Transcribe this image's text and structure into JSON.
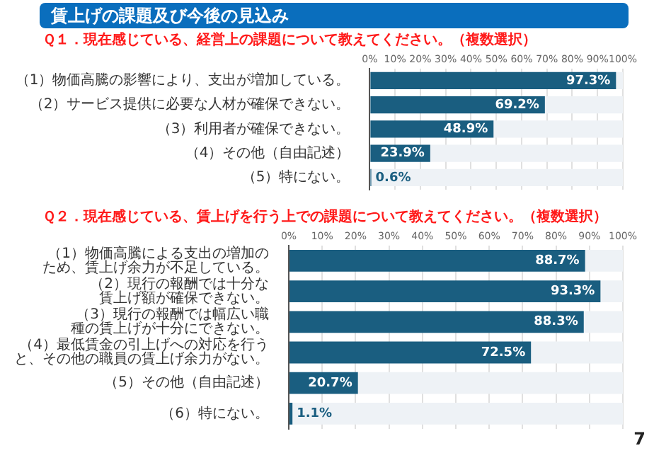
{
  "chart_data": [
    {
      "type": "bar",
      "orientation": "horizontal",
      "stacked": true,
      "title": "賃上げの課題及び今後の見込み",
      "subtitle": "Ｑ１．現在感じている、経営上の課題について教えてください。（複数選択）",
      "categories": [
        "（1）物価高騰の影響により、支出が増加している。",
        "（2）サービス提供に必要な人材が確保できない。",
        "（3）利用者が確保できない。",
        "（4）その他（自由記述）",
        "（5）特にない。"
      ],
      "series": [
        {
          "color": "#1a5e80",
          "values": [
            97.3,
            69.2,
            48.9,
            23.9,
            0.6
          ],
          "value_labels": [
            "97.3%",
            "69.2%",
            "48.9%",
            "23.9%",
            "0.6%"
          ]
        },
        {
          "color": "#eef2f6",
          "values": [
            2.7,
            30.8,
            51.1,
            76.1,
            99.4
          ]
        }
      ],
      "xlim": [
        0,
        100
      ],
      "xticks": [
        {
          "value": 0,
          "label": "0%"
        },
        {
          "value": 10,
          "label": "10%"
        },
        {
          "value": 20,
          "label": "20%"
        },
        {
          "value": 30,
          "label": "30%"
        },
        {
          "value": 40,
          "label": "40%"
        },
        {
          "value": 50,
          "label": "50%"
        },
        {
          "value": 60,
          "label": "60%"
        },
        {
          "value": 70,
          "label": "70%"
        },
        {
          "value": 80,
          "label": "80%"
        },
        {
          "value": 90,
          "label": "90%"
        },
        {
          "value": 100,
          "label": "100%"
        }
      ],
      "grid": "x",
      "legend": false
    },
    {
      "type": "bar",
      "orientation": "horizontal",
      "stacked": true,
      "title": "Ｑ２．現在感じている、賃上げを行う上での課題について教えてください。（複数選択）",
      "categories": [
        "（1）物価高騰による支出の増加のため、賃上げ余力が不足している。",
        "（2）現行の報酬では十分な賃上げ額が確保できない。",
        "（3）現行の報酬では幅広い職種の賃上げが十分にできない。",
        "（4）最低賃金の引上げへの対応を行うと、その他の職員の賃上げ余力がない。",
        "（5）その他（自由記述）",
        "（6）特にない。"
      ],
      "series": [
        {
          "color": "#1a5e80",
          "values": [
            88.7,
            93.3,
            88.3,
            72.5,
            20.7,
            1.1
          ],
          "value_labels": [
            "88.7%",
            "93.3%",
            "88.3%",
            "72.5%",
            "20.7%",
            "1.1%"
          ]
        },
        {
          "color": "#eef2f6",
          "values": [
            11.3,
            6.7,
            11.7,
            27.5,
            79.3,
            98.9
          ]
        }
      ],
      "xlim": [
        0,
        100
      ],
      "xticks": [
        {
          "value": 0,
          "label": "0%"
        },
        {
          "value": 10,
          "label": "10%"
        },
        {
          "value": 20,
          "label": "20%"
        },
        {
          "value": 30,
          "label": "30%"
        },
        {
          "value": 40,
          "label": "40%"
        },
        {
          "value": 50,
          "label": "50%"
        },
        {
          "value": 60,
          "label": "60%"
        },
        {
          "value": 70,
          "label": "70%"
        },
        {
          "value": 80,
          "label": "80%"
        },
        {
          "value": 90,
          "label": "90%"
        },
        {
          "value": 100,
          "label": "100%"
        }
      ],
      "grid": "x",
      "legend": false,
      "annotations": [
        "7"
      ]
    }
  ]
}
